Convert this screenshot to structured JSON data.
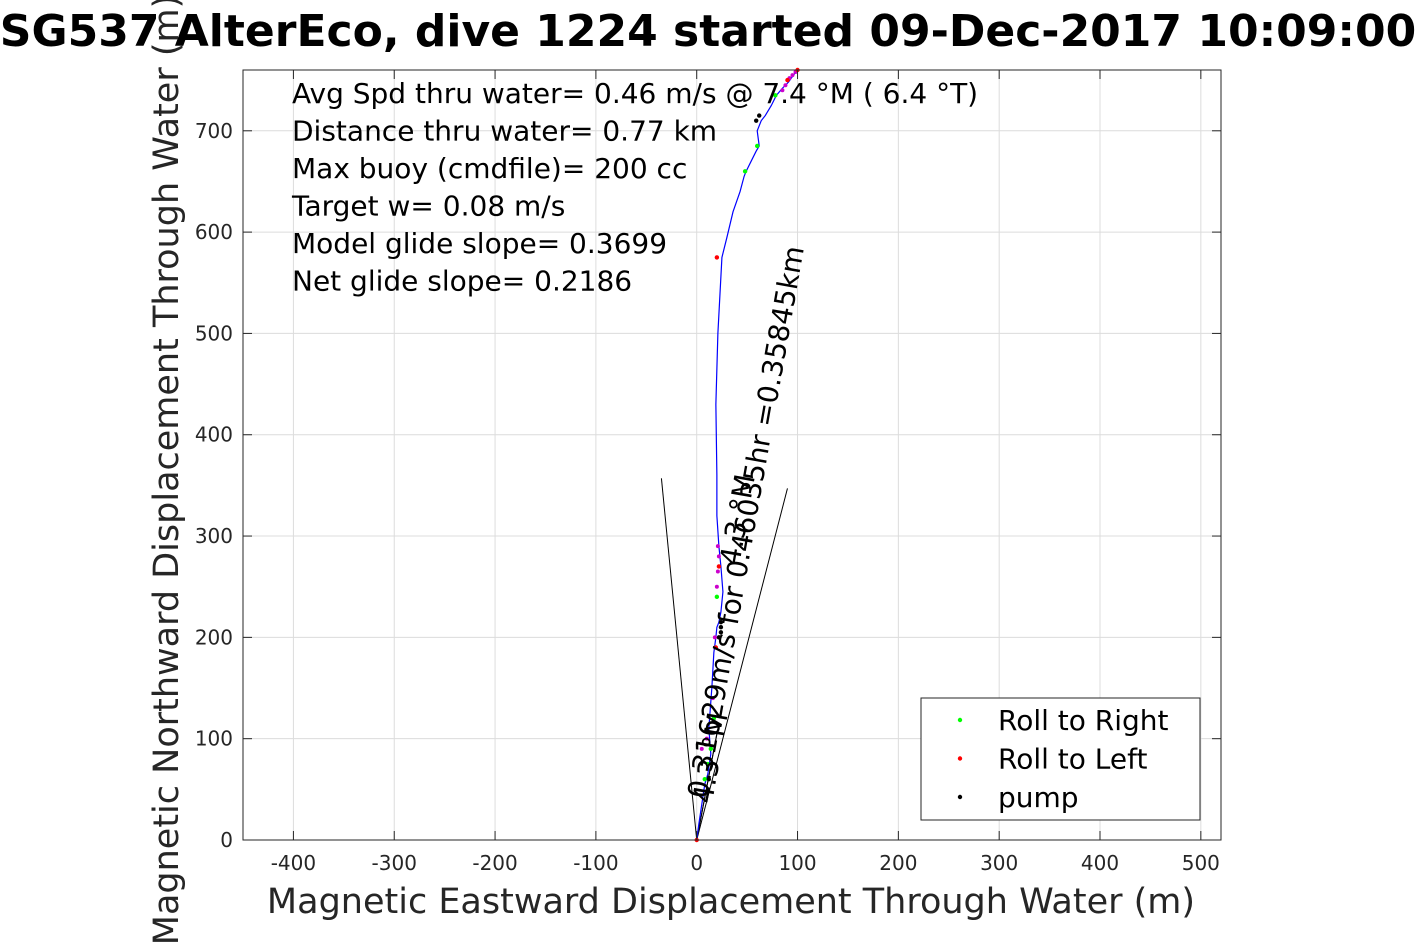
{
  "chart_data": {
    "type": "scatter",
    "title": "SG537 AlterEco, dive 1224 started 09-Dec-2017 10:09:00",
    "xlabel": "Magnetic Eastward Displacement Through Water (m)",
    "ylabel": "Magnetic Northward Displacement Through Water (m)",
    "xlim": [
      -450,
      520
    ],
    "ylim": [
      0,
      760
    ],
    "xticks": [
      -400,
      -300,
      -200,
      -100,
      0,
      100,
      200,
      300,
      400,
      500
    ],
    "yticks": [
      0,
      100,
      200,
      300,
      400,
      500,
      600,
      700
    ],
    "grid": true,
    "legend_position": "bottom-right",
    "annotations": [
      "Avg Spd thru water=  0.46 m/s @   7.4 °M (  6.4 °T)",
      "Distance thru water=  0.77 km",
      "Max buoy (cmdfile)= 200 cc",
      "Target w= 0.08 m/s",
      "Model glide slope= 0.3699",
      "Net glide slope= 0.2186"
    ],
    "rotated_labels": [
      {
        "text": "0.31629m/s for 0.46035hr =0.35845km",
        "x": 10,
        "y": 40
      },
      {
        "text": "4.3 °M",
        "x": 15,
        "y": 35
      },
      {
        "text": "4.3 °M",
        "x": 42,
        "y": 270
      }
    ],
    "track": {
      "name": "track",
      "color": "#0000ff",
      "x": [
        0,
        2,
        5,
        8,
        11,
        14,
        12,
        15,
        17,
        19,
        20,
        22,
        24,
        26,
        24,
        22,
        20,
        20,
        19,
        21,
        25,
        30,
        36,
        43,
        47,
        49,
        54,
        59,
        62,
        60,
        64,
        68,
        74,
        79,
        85,
        91,
        96,
        100
      ],
      "y": [
        0,
        15,
        35,
        55,
        65,
        85,
        110,
        150,
        185,
        200,
        210,
        215,
        225,
        245,
        270,
        290,
        320,
        360,
        430,
        500,
        575,
        595,
        620,
        640,
        655,
        660,
        670,
        680,
        685,
        700,
        710,
        715,
        725,
        735,
        742,
        748,
        755,
        760
      ]
    },
    "series": [
      {
        "name": "Roll to Right",
        "color": "#00ff00",
        "x": [
          8,
          11,
          14,
          17,
          20,
          48,
          60,
          78
        ],
        "y": [
          60,
          75,
          90,
          120,
          240,
          660,
          685,
          735
        ]
      },
      {
        "name": "Roll to Left",
        "color": "#ff0000",
        "x": [
          0,
          19,
          22,
          20,
          90,
          100
        ],
        "y": [
          0,
          190,
          270,
          575,
          750,
          760
        ]
      },
      {
        "name": "pump",
        "color": "#000000",
        "x": [
          12,
          22,
          24,
          24,
          24,
          59,
          62
        ],
        "y": [
          60,
          200,
          205,
          210,
          215,
          710,
          715
        ]
      }
    ],
    "magenta_points": {
      "color": "#cc00cc",
      "x": [
        5,
        10,
        16,
        18,
        20,
        21,
        22,
        21,
        20,
        85,
        88,
        92,
        95,
        98
      ],
      "y": [
        90,
        100,
        140,
        200,
        250,
        265,
        280,
        290,
        575,
        740,
        745,
        752,
        755,
        758
      ]
    },
    "wedge": {
      "color": "#000000",
      "lines": [
        {
          "x": [
            0,
            -35
          ],
          "y": [
            0,
            357
          ]
        },
        {
          "x": [
            0,
            90
          ],
          "y": [
            0,
            347
          ]
        },
        {
          "x": [
            0,
            22
          ],
          "y": [
            0,
            115
          ]
        },
        {
          "x": [
            0,
            20
          ],
          "y": [
            0,
            105
          ]
        }
      ]
    }
  }
}
